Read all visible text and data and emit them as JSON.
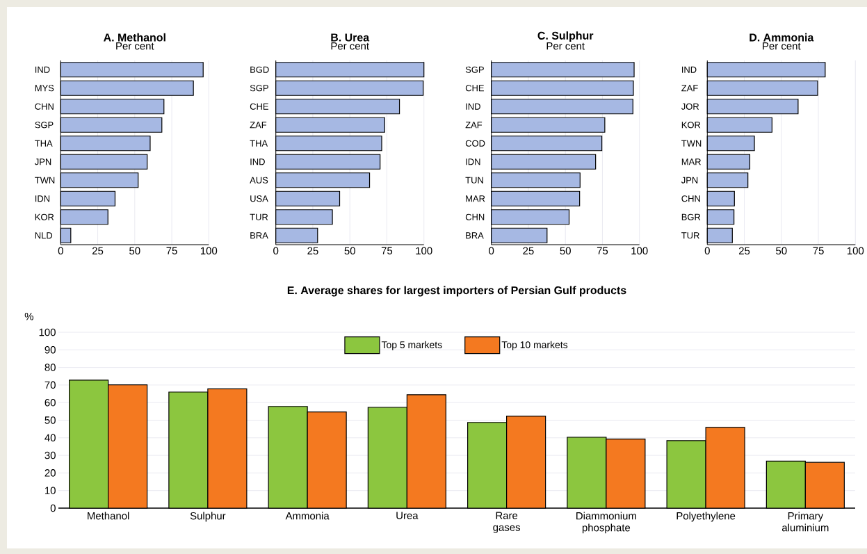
{
  "chart_data": [
    {
      "type": "bar",
      "orientation": "horizontal",
      "title": "A. Methanol",
      "subtitle": "Per cent",
      "categories": [
        "IND",
        "MYS",
        "CHN",
        "SGP",
        "THA",
        "JPN",
        "TWN",
        "IDN",
        "KOR",
        "NLD"
      ],
      "values": [
        96.2,
        89.6,
        69.7,
        68.3,
        60.4,
        58.4,
        52.3,
        36.7,
        31.9,
        6.8
      ],
      "color": "#a6b8e3",
      "xlim": [
        0,
        100
      ],
      "xticks": [
        0,
        25,
        50,
        75,
        100
      ],
      "grid": "x"
    },
    {
      "type": "bar",
      "orientation": "horizontal",
      "title": "B. Urea",
      "subtitle": "Per cent",
      "categories": [
        "BGD",
        "SGP",
        "CHE",
        "ZAF",
        "THA",
        "IND",
        "AUS",
        "USA",
        "TUR",
        "BRA"
      ],
      "values": [
        100,
        99.5,
        83.5,
        73.5,
        71.5,
        70.4,
        63.3,
        43.1,
        38.2,
        28.2
      ],
      "color": "#a6b8e3",
      "xlim": [
        0,
        100
      ],
      "xticks": [
        0,
        25,
        50,
        75,
        100
      ],
      "grid": "x"
    },
    {
      "type": "bar",
      "orientation": "horizontal",
      "title": "C. Sulphur",
      "subtitle": "Per cent",
      "categories": [
        "SGP",
        "CHE",
        "IND",
        "ZAF",
        "COD",
        "IDN",
        "TUN",
        "MAR",
        "CHN",
        "BRA"
      ],
      "values": [
        96.4,
        95.9,
        95.6,
        76.6,
        74.6,
        70.4,
        59.9,
        59.6,
        52.5,
        37.6
      ],
      "color": "#a6b8e3",
      "xlim": [
        0,
        100
      ],
      "xticks": [
        0,
        25,
        50,
        75,
        100
      ],
      "grid": "x"
    },
    {
      "type": "bar",
      "orientation": "horizontal",
      "title": "D. Ammonia",
      "subtitle": "Per cent",
      "categories": [
        "IND",
        "ZAF",
        "JOR",
        "KOR",
        "TWN",
        "MAR",
        "JPN",
        "CHN",
        "BGR",
        "TUR"
      ],
      "values": [
        79.6,
        74.5,
        61.3,
        43.7,
        31.8,
        28.7,
        27.4,
        18.3,
        18.0,
        16.9
      ],
      "color": "#a6b8e3",
      "xlim": [
        0,
        100
      ],
      "xticks": [
        0,
        25,
        50,
        75,
        100
      ],
      "grid": "x"
    },
    {
      "type": "bar",
      "title": "E. Average shares for largest importers of Persian Gulf products",
      "ylabel": "%",
      "categories": [
        "Methanol",
        "Sulphur",
        "Ammonia",
        "Urea",
        "Rare gases",
        "Diammonium phosphate",
        "Polyethylene",
        "Primary aluminium"
      ],
      "series": [
        {
          "name": "Top 5 markets",
          "color": "#8cc63f",
          "values": [
            72.8,
            66.0,
            57.8,
            57.3,
            48.7,
            40.3,
            38.4,
            26.7
          ]
        },
        {
          "name": "Top 10 markets",
          "color": "#f47920",
          "values": [
            70.1,
            67.8,
            54.7,
            64.5,
            52.3,
            39.3,
            45.9,
            26.0
          ]
        }
      ],
      "ylim": [
        0,
        100
      ],
      "yticks": [
        0,
        10,
        20,
        30,
        40,
        50,
        60,
        70,
        80,
        90,
        100
      ],
      "grid": "y",
      "legend": "top"
    }
  ]
}
